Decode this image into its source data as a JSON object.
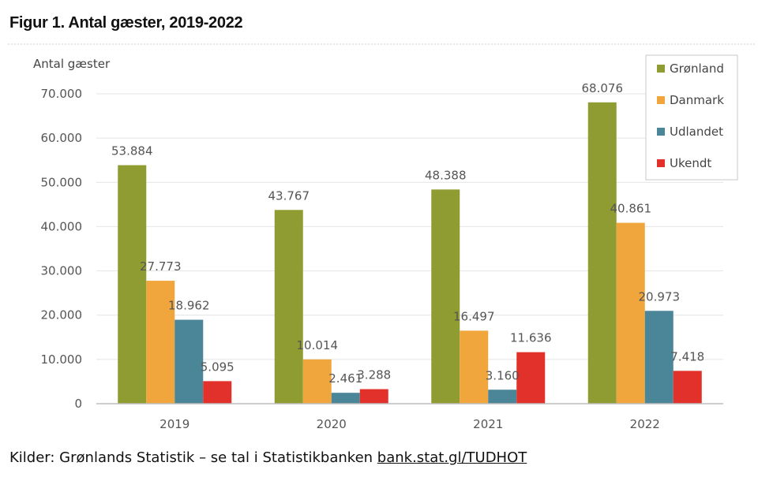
{
  "figure": {
    "title": "Figur 1. Antal gæster, 2019-2022",
    "source_prefix": "Kilder: Grønlands Statistik – se tal i Statistikbanken ",
    "source_link": "bank.stat.gl/TUDHOT"
  },
  "chart_data": {
    "type": "bar",
    "ylabel": "Antal gæster",
    "xlabel": "",
    "ylim": [
      0,
      70000
    ],
    "yticks": [
      0,
      10000,
      20000,
      30000,
      40000,
      50000,
      60000,
      70000
    ],
    "ytick_labels": [
      "0",
      "10.000",
      "20.000",
      "30.000",
      "40.000",
      "50.000",
      "60.000",
      "70.000"
    ],
    "grid": true,
    "legend_position": "top-right",
    "categories": [
      "2019",
      "2020",
      "2021",
      "2022"
    ],
    "series": [
      {
        "name": "Grønland",
        "color": "#8f9c32",
        "values": [
          53884,
          43767,
          48388,
          68076
        ],
        "labels": [
          "53.884",
          "43.767",
          "48.388",
          "68.076"
        ]
      },
      {
        "name": "Danmark",
        "color": "#f0a63c",
        "values": [
          27773,
          10014,
          16497,
          40861
        ],
        "labels": [
          "27.773",
          "10.014",
          "16.497",
          "40.861"
        ]
      },
      {
        "name": "Udlandet",
        "color": "#4a8598",
        "values": [
          18962,
          2461,
          3160,
          20973
        ],
        "labels": [
          "18.962",
          "2.461",
          "3.160",
          "20.973"
        ]
      },
      {
        "name": "Ukendt",
        "color": "#e2312a",
        "values": [
          5095,
          3288,
          11636,
          7418
        ],
        "labels": [
          "5.095",
          "3.288",
          "11.636",
          "7.418"
        ]
      }
    ]
  }
}
